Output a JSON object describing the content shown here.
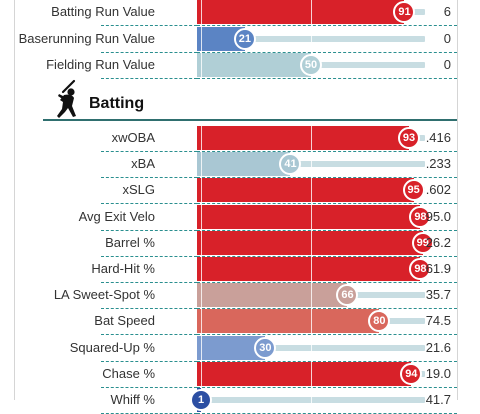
{
  "top_rows": [
    {
      "label": "Batting Run Value",
      "percentile": 91,
      "value": "6",
      "color": "#d82129"
    },
    {
      "label": "Baserunning Run Value",
      "percentile": 21,
      "value": "0",
      "color": "#5b84c4"
    },
    {
      "label": "Fielding Run Value",
      "percentile": 50,
      "value": "0",
      "color": "#b0cfd6"
    }
  ],
  "section": {
    "title": "Batting",
    "icon": "batter-silhouette-icon"
  },
  "batting_rows": [
    {
      "label": "xwOBA",
      "percentile": 93,
      "value": ".416",
      "color": "#d82129"
    },
    {
      "label": "xBA",
      "percentile": 41,
      "value": ".233",
      "color": "#a9c7d3"
    },
    {
      "label": "xSLG",
      "percentile": 95,
      "value": ".602",
      "color": "#d82129"
    },
    {
      "label": "Avg Exit Velo",
      "percentile": 98,
      "value": "95.0",
      "color": "#d82129"
    },
    {
      "label": "Barrel %",
      "percentile": 99,
      "value": "26.2",
      "color": "#d82129"
    },
    {
      "label": "Hard-Hit %",
      "percentile": 98,
      "value": "61.9",
      "color": "#d82129"
    },
    {
      "label": "LA Sweet-Spot %",
      "percentile": 66,
      "value": "35.7",
      "color": "#c9a09a"
    },
    {
      "label": "Bat Speed",
      "percentile": 80,
      "value": "74.5",
      "color": "#d9675c"
    },
    {
      "label": "Squared-Up %",
      "percentile": 30,
      "value": "21.6",
      "color": "#7c9bcf"
    },
    {
      "label": "Chase %",
      "percentile": 94,
      "value": "19.0",
      "color": "#d82129"
    },
    {
      "label": "Whiff %",
      "percentile": 1,
      "value": "41.7",
      "color": "#2c4fa3"
    }
  ]
}
